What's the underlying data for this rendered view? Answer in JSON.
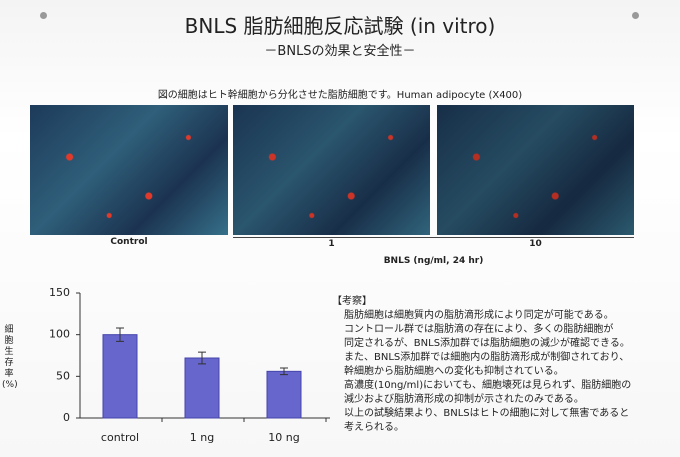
{
  "header": {
    "title": "BNLS 脂肪細胞反応試験 (in vitro)",
    "subtitle": "－BNLSの効果と安全性－"
  },
  "caption": "図の細胞はヒト幹細胞から分化させた脂肪細胞です。Human adipocyte (X400)",
  "images": {
    "labels": [
      "Control",
      "1",
      "10"
    ],
    "group_label": "BNLS (ng/ml, 24 hr)"
  },
  "chart_data": {
    "type": "bar",
    "y_label": "細胞生存率(%)",
    "categories": [
      "control",
      "1 ng",
      "10 ng"
    ],
    "values": [
      100,
      72,
      56
    ],
    "errors": [
      8,
      7,
      4
    ],
    "color": "#6666cc",
    "ylim": [
      0,
      150
    ],
    "yticks": [
      0,
      50,
      100,
      150
    ]
  },
  "notes": {
    "heading": "【考察】",
    "lines": [
      "脂肪細胞は細胞質内の脂肪滴形成により同定が可能である。",
      "コントロール群では脂肪滴の存在により、多くの脂肪細胞が",
      "同定されるが、BNLS添加群では脂肪細胞の減少が確認できる。",
      "また、BNLS添加群では細胞内の脂肪滴形成が制御されており、",
      "幹細胞から脂肪細胞への変化も抑制されている。",
      "高濃度(10ng/ml)においても、細胞壊死は見られず、脂肪細胞の",
      "減少および脂肪滴形成の抑制が示されたのみである。",
      "以上の試験結果より、BNLSはヒトの細胞に対して無害であると",
      "考えられる。"
    ]
  }
}
